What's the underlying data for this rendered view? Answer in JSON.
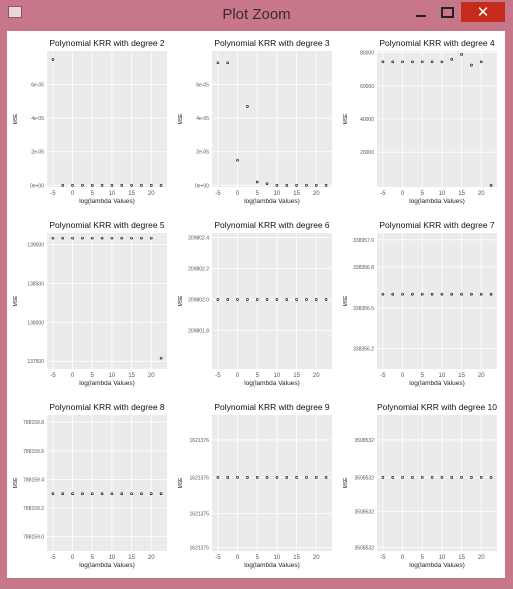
{
  "window": {
    "title": "Plot Zoom",
    "close_glyph": "✕",
    "icons": [
      "app-icon",
      "minimize-icon",
      "maximize-icon",
      "close-icon"
    ]
  },
  "colors": {
    "title_bar": "#c8768a",
    "close_button": "#c42b1c",
    "panel_bg": "#ebebeb",
    "grid": "#ffffff",
    "point": "#000000"
  },
  "chart_data": [
    {
      "type": "scatter",
      "title": "Polynomial KRR with degree 2",
      "xlabel": "log(lambda Values)",
      "ylabel": "MSE",
      "x": [
        -5,
        -2.5,
        0,
        2.5,
        5,
        7.5,
        10,
        12.5,
        15,
        17.5,
        20,
        22.5
      ],
      "y": [
        7.5e-05,
        0,
        0,
        0,
        0,
        0,
        0,
        0,
        0,
        0,
        0,
        0
      ],
      "xticks": [
        "-5",
        "0",
        "5",
        "10",
        "15",
        "20"
      ],
      "ytick_vals": [
        0,
        2e-05,
        4e-05,
        6e-05
      ],
      "yticks": [
        "0e+00",
        "2e-05",
        "4e-05",
        "6e-05"
      ],
      "ylim": [
        -1e-06,
        8e-05
      ]
    },
    {
      "type": "scatter",
      "title": "Polynomial KRR with degree 3",
      "xlabel": "log(lambda Values)",
      "ylabel": "MSE",
      "x": [
        -5,
        -2.5,
        0,
        2.5,
        5,
        7.5,
        10,
        12.5,
        15,
        17.5,
        20,
        22.5
      ],
      "y": [
        7.3e-05,
        7.3e-05,
        1.5e-05,
        4.7e-05,
        2e-06,
        1e-06,
        0,
        0,
        0,
        0,
        0,
        0
      ],
      "xticks": [
        "-5",
        "0",
        "5",
        "10",
        "15",
        "20"
      ],
      "ytick_vals": [
        0,
        2e-05,
        4e-05,
        6e-05
      ],
      "yticks": [
        "0e+00",
        "2e-05",
        "4e-05",
        "6e-05"
      ],
      "ylim": [
        -1e-06,
        8e-05
      ]
    },
    {
      "type": "scatter",
      "title": "Polynomial KRR with degree 4",
      "xlabel": "log(lambda Values)",
      "ylabel": "MSE",
      "x": [
        -5,
        -2.5,
        0,
        2.5,
        5,
        7.5,
        10,
        12.5,
        15,
        17.5,
        20,
        22.5
      ],
      "y": [
        74500,
        74500,
        74500,
        74500,
        74500,
        74500,
        74500,
        76000,
        79000,
        72500,
        74500,
        0
      ],
      "xticks": [
        "-5",
        "0",
        "5",
        "10",
        "15",
        "20"
      ],
      "ytick_vals": [
        20000,
        40000,
        60000,
        80000
      ],
      "yticks": [
        "20000",
        "40000",
        "60000",
        "80000"
      ],
      "ylim": [
        -1000,
        81000
      ]
    },
    {
      "type": "scatter",
      "title": "Polynomial KRR with degree 5",
      "xlabel": "log(lambda Values)",
      "ylabel": "MSE",
      "x": [
        -5,
        -2.5,
        0,
        2.5,
        5,
        7.5,
        10,
        12.5,
        15,
        17.5,
        20,
        22.5
      ],
      "y": [
        139084,
        139084,
        139084,
        139084,
        139084,
        139084,
        139084,
        139084,
        139084,
        139084,
        139084,
        137540
      ],
      "xticks": [
        "-5",
        "0",
        "5",
        "10",
        "15",
        "20"
      ],
      "ytick_vals": [
        137500,
        138000,
        138500,
        139000
      ],
      "yticks": [
        "137500",
        "138000",
        "138500",
        "139000"
      ],
      "ylim": [
        137400,
        139150
      ]
    },
    {
      "type": "scatter",
      "title": "Polynomial KRR with degree 6",
      "xlabel": "log(lambda Values)",
      "ylabel": "MSE",
      "x": [
        -5,
        -2.5,
        0,
        2.5,
        5,
        7.5,
        10,
        12.5,
        15,
        17.5,
        20,
        22.5
      ],
      "y": [
        209802,
        209802,
        209802,
        209802,
        209802,
        209802,
        209802,
        209802,
        209802,
        209802,
        209802,
        209802
      ],
      "xticks": [
        "-5",
        "0",
        "5",
        "10",
        "15",
        "20"
      ],
      "ytick_vals": [
        209801.8,
        209802,
        209802.2,
        209802.4
      ],
      "yticks": [
        "209801.8",
        "209802.0",
        "209802.2",
        "209802.4"
      ],
      "ylim": [
        209801.55,
        209802.43
      ]
    },
    {
      "type": "scatter",
      "title": "Polynomial KRR with degree 7",
      "xlabel": "log(lambda Values)",
      "ylabel": "MSE",
      "x": [
        -5,
        -2.5,
        0,
        2.5,
        5,
        7.5,
        10,
        12.5,
        15,
        17.5,
        20,
        22.5
      ],
      "y": [
        338356.6,
        338356.6,
        338356.6,
        338356.6,
        338356.6,
        338356.6,
        338356.6,
        338356.6,
        338356.6,
        338356.6,
        338356.6,
        338356.6
      ],
      "xticks": [
        "-5",
        "0",
        "5",
        "10",
        "15",
        "20"
      ],
      "ytick_vals": [
        338356.2,
        338356.5,
        338356.8,
        338357.0
      ],
      "yticks": [
        "338356.2",
        "338356.5",
        "338356.8",
        "338357.0"
      ],
      "ylim": [
        338356.05,
        338357.05
      ]
    },
    {
      "type": "scatter",
      "title": "Polynomial KRR with degree 8",
      "xlabel": "log(lambda Values)",
      "ylabel": "MSE",
      "x": [
        -5,
        -2.5,
        0,
        2.5,
        5,
        7.5,
        10,
        12.5,
        15,
        17.5,
        20,
        22.5
      ],
      "y": [
        788159.3,
        788159.3,
        788159.3,
        788159.3,
        788159.3,
        788159.3,
        788159.3,
        788159.3,
        788159.3,
        788159.3,
        788159.3,
        788159.3
      ],
      "xticks": [
        "-5",
        "0",
        "5",
        "10",
        "15",
        "20"
      ],
      "ytick_vals": [
        788159.0,
        788159.2,
        788159.4,
        788159.6,
        788159.8
      ],
      "yticks": [
        "788159.0",
        "788159.2",
        "788159.4",
        "788159.6",
        "788159.8"
      ],
      "ylim": [
        788158.9,
        788159.85
      ]
    },
    {
      "type": "scatter",
      "title": "Polynomial KRR with degree 9",
      "xlabel": "log(lambda Values)",
      "ylabel": "MSE",
      "x": [
        -5,
        -2.5,
        0,
        2.5,
        5,
        7.5,
        10,
        12.5,
        15,
        17.5,
        20,
        22.5
      ],
      "y": [
        1621376,
        1621376,
        1621376,
        1621376,
        1621376,
        1621376,
        1621376,
        1621376,
        1621376,
        1621376,
        1621376,
        1621376
      ],
      "xticks": [
        "-5",
        "0",
        "5",
        "10",
        "15",
        "20"
      ],
      "ytick_vals": [
        0.96,
        1.56,
        2.2,
        2.86
      ],
      "yticks": [
        "1621375",
        "1621375",
        "1621376",
        "1621376"
      ],
      "ylim": [
        0.9,
        3.3
      ],
      "y_plot": 2.2
    },
    {
      "type": "scatter",
      "title": "Polynomial KRR with degree 10",
      "xlabel": "log(lambda Values)",
      "ylabel": "MSE",
      "x": [
        -5,
        -2.5,
        0,
        2.5,
        5,
        7.5,
        10,
        12.5,
        15,
        17.5,
        20,
        22.5
      ],
      "y": [
        3508532,
        3508532,
        3508532,
        3508532,
        3508532,
        3508532,
        3508532,
        3508532,
        3508532,
        3508532,
        3508532,
        3508532
      ],
      "xticks": [
        "-5",
        "0",
        "5",
        "10",
        "15",
        "20"
      ],
      "ytick_vals": [
        0.96,
        1.6,
        2.2,
        2.86
      ],
      "yticks": [
        "3508532",
        "3508532",
        "3508532",
        "3508532"
      ],
      "ylim": [
        0.9,
        3.3
      ],
      "y_plot": 2.2
    }
  ]
}
